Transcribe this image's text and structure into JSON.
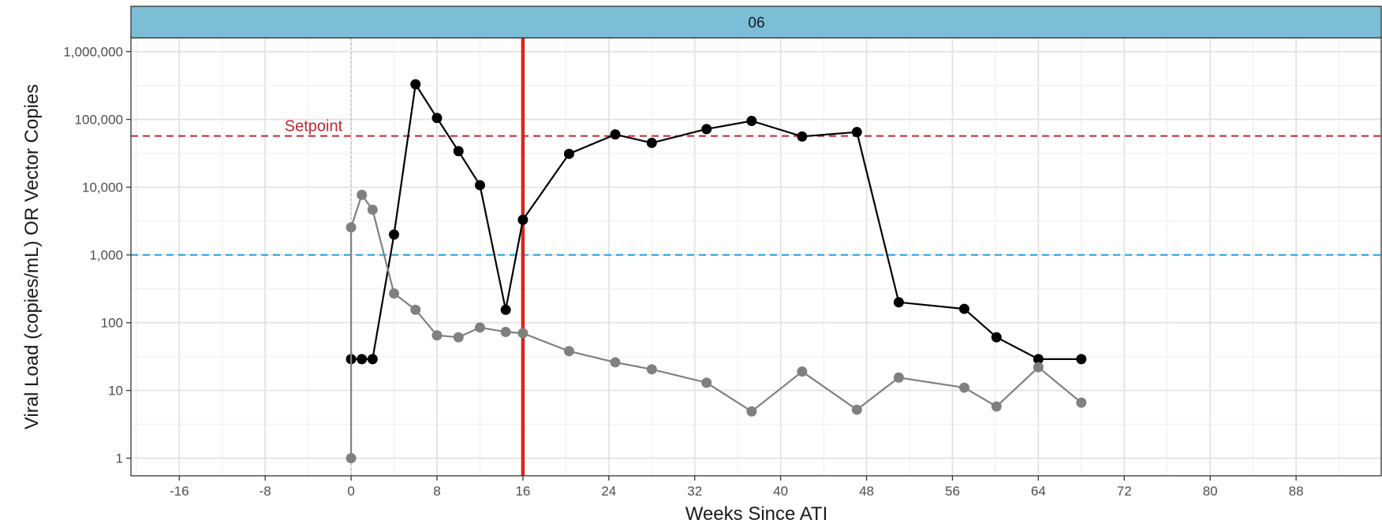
{
  "chart_data": {
    "type": "line",
    "panel_label": "06",
    "xlabel": "Weeks Since ATI",
    "ylabel": "Viral Load (copies/mL) OR Vector Copies",
    "x_scale": "linear",
    "y_scale": "log10",
    "xlim": [
      -20.5,
      96
    ],
    "ylim": [
      0.55,
      1600000
    ],
    "x_ticks": [
      -16,
      -8,
      0,
      8,
      16,
      24,
      32,
      40,
      48,
      56,
      64,
      72,
      80,
      88
    ],
    "x_tick_labels": [
      "-16",
      "-8",
      "0",
      "8",
      "16",
      "24",
      "32",
      "40",
      "48",
      "56",
      "64",
      "72",
      "80",
      "88"
    ],
    "y_ticks": [
      1,
      10,
      100,
      1000,
      10000,
      100000,
      1000000
    ],
    "y_tick_labels": [
      "1",
      "10",
      "100",
      "1,000",
      "10,000",
      "100,000",
      "1,000,000"
    ],
    "grid": true,
    "series": [
      {
        "color": "#000000",
        "x": [
          0,
          1,
          2,
          4,
          6,
          8,
          10,
          12,
          14.4,
          16,
          20.3,
          24.6,
          28,
          33.1,
          37.3,
          42,
          47.1,
          51,
          57.1,
          60.1,
          64,
          68
        ],
        "y": [
          29,
          29,
          29,
          2000,
          330000,
          105000,
          34000,
          10700,
          155,
          3300,
          31000,
          60000,
          45000,
          72000,
          95000,
          56000,
          65000,
          200,
          160,
          61,
          29,
          29
        ]
      },
      {
        "color": "#808080",
        "x": [
          0,
          0,
          1,
          2,
          4,
          6,
          8,
          10,
          12,
          14.4,
          16,
          20.3,
          24.6,
          28,
          33.1,
          37.3,
          42,
          47.1,
          51,
          57.1,
          60.1,
          64,
          68
        ],
        "y": [
          1,
          2550,
          7700,
          4650,
          270,
          155,
          65,
          61,
          85,
          73,
          70,
          38,
          26,
          20.5,
          13,
          4.9,
          19,
          5.2,
          15.5,
          11,
          5.8,
          22,
          6.6
        ]
      }
    ],
    "reference_lines": [
      {
        "orientation": "horizontal",
        "value": 57000,
        "color": "#c1272d",
        "style": "dashed",
        "label": "Setpoint",
        "label_x": -3.5
      },
      {
        "orientation": "horizontal",
        "value": 1000,
        "color": "#1f9ce0",
        "style": "dashed"
      },
      {
        "orientation": "vertical",
        "value": 16,
        "color": "#d7261e",
        "style": "solid"
      },
      {
        "orientation": "vertical",
        "value": 0,
        "color": "#c8c8c8",
        "style": "dotted"
      }
    ]
  }
}
